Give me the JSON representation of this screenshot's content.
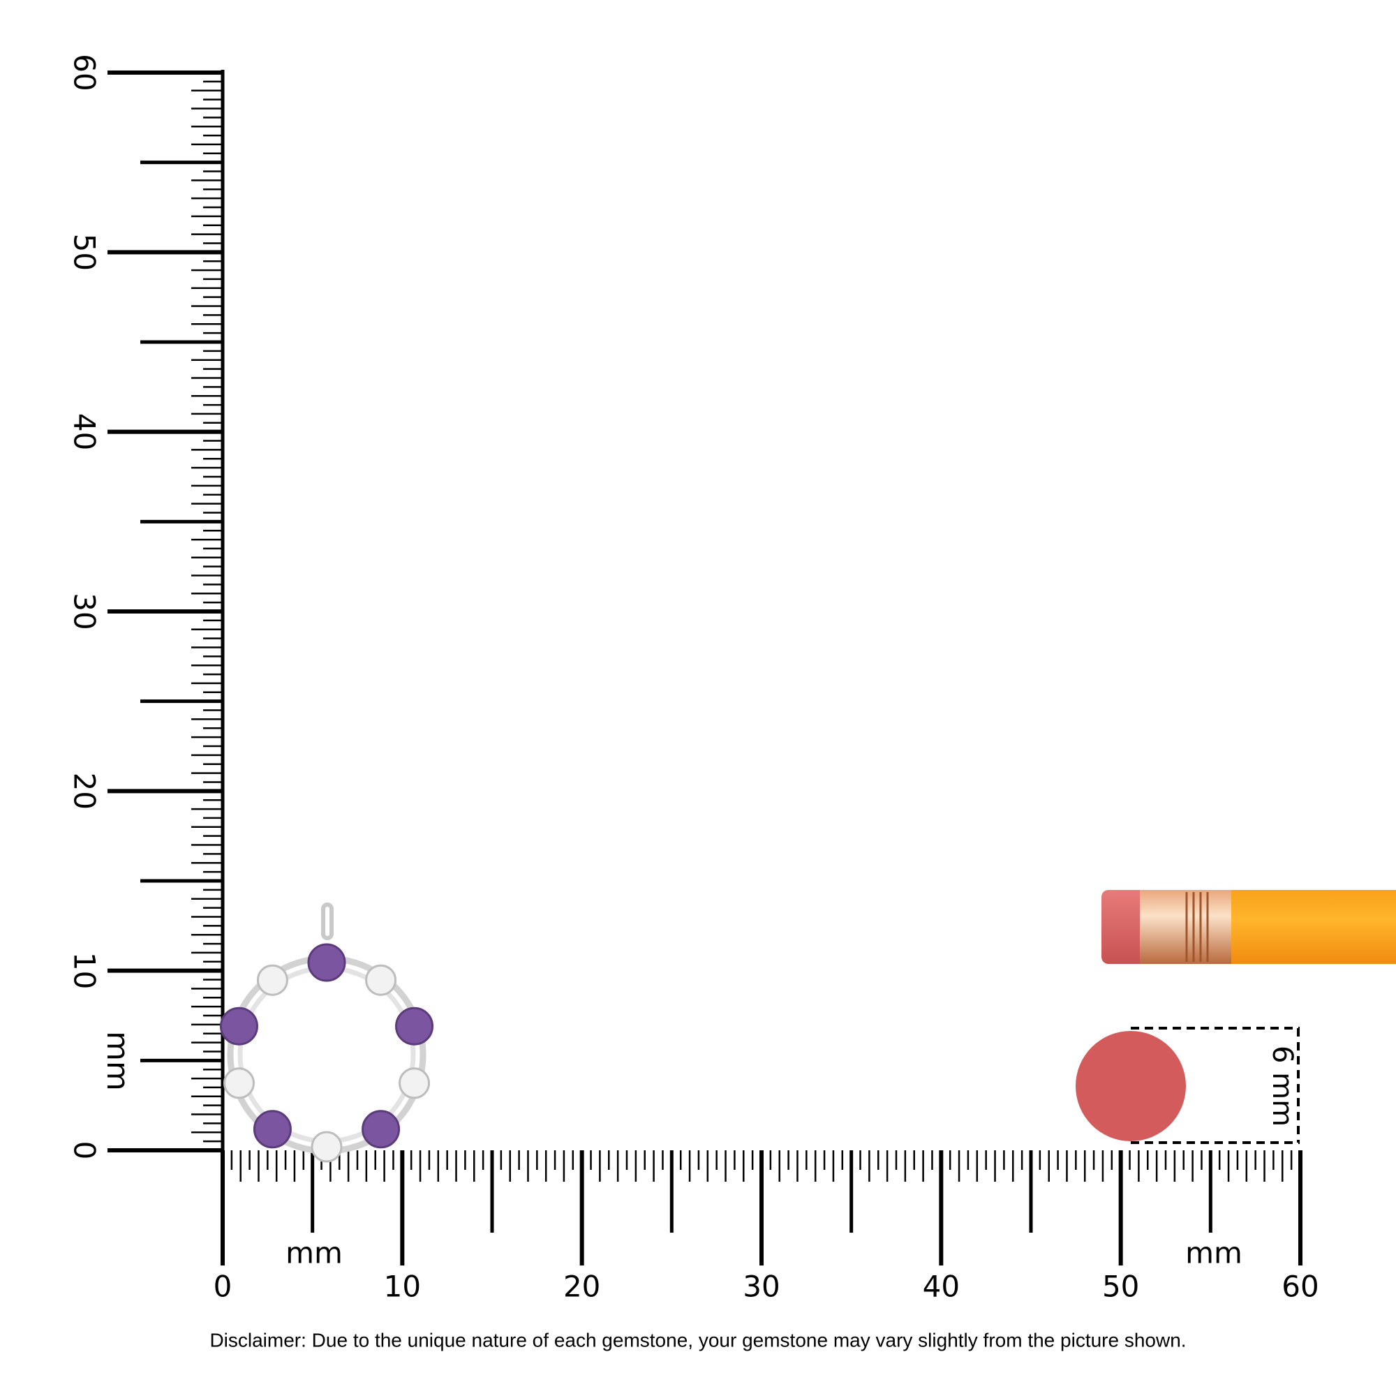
{
  "vertical_ruler": {
    "labels": [
      "0",
      "10",
      "20",
      "30",
      "40",
      "50",
      "60"
    ],
    "unit": "mm"
  },
  "horizontal_ruler": {
    "labels": [
      "0",
      "10",
      "20",
      "30",
      "40",
      "50",
      "60"
    ],
    "unit_left": "mm",
    "unit_right": "mm"
  },
  "pencil": {
    "dimension": "6 mm"
  },
  "disclaimer": "Disclaimer: Due to the unique nature of each gemstone, your gemstone may vary slightly from the picture shown."
}
